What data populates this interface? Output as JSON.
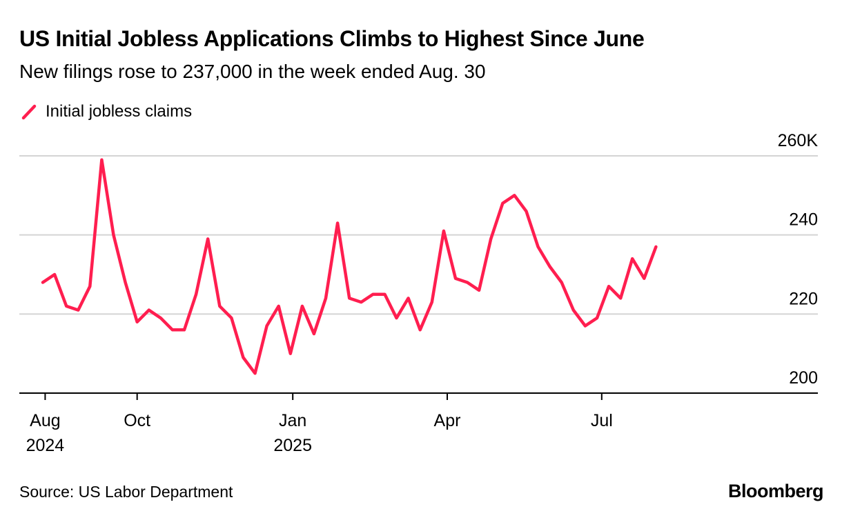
{
  "chart_data": {
    "type": "line",
    "title": "US Initial Jobless Applications Climbs to Highest Since June",
    "subtitle": "New filings rose to 237,000 in the week ended Aug. 30",
    "legend": [
      {
        "name": "Initial jobless claims",
        "color": "#ff1e4f"
      }
    ],
    "ylim": [
      200,
      260
    ],
    "yticks": [
      {
        "value": 200,
        "label": "200"
      },
      {
        "value": 220,
        "label": "220"
      },
      {
        "value": 240,
        "label": "240"
      },
      {
        "value": 260,
        "label": "260K"
      }
    ],
    "xlim": [
      0,
      59
    ],
    "xticks": [
      {
        "pos": 0.2,
        "line1": "Aug",
        "line2": "2024"
      },
      {
        "pos": 8,
        "line1": "Oct",
        "line2": ""
      },
      {
        "pos": 21.2,
        "line1": "Jan",
        "line2": "2025"
      },
      {
        "pos": 34.3,
        "line1": "Apr",
        "line2": ""
      },
      {
        "pos": 47.4,
        "line1": "Jul",
        "line2": ""
      }
    ],
    "series": [
      {
        "name": "Initial jobless claims",
        "color": "#ff1e4f",
        "values": [
          228,
          230,
          222,
          221,
          227,
          259,
          240,
          228,
          218,
          221,
          219,
          216,
          216,
          225,
          239,
          222,
          219,
          209,
          205,
          217,
          222,
          210,
          222,
          215,
          224,
          243,
          224,
          223,
          225,
          225,
          219,
          224,
          216,
          223,
          241,
          229,
          228,
          226,
          239,
          248,
          250,
          246,
          237,
          232,
          228,
          221,
          217,
          219,
          227,
          224,
          234,
          229,
          237
        ]
      }
    ],
    "source": "Source: US Labor Department",
    "brand": "Bloomberg"
  }
}
